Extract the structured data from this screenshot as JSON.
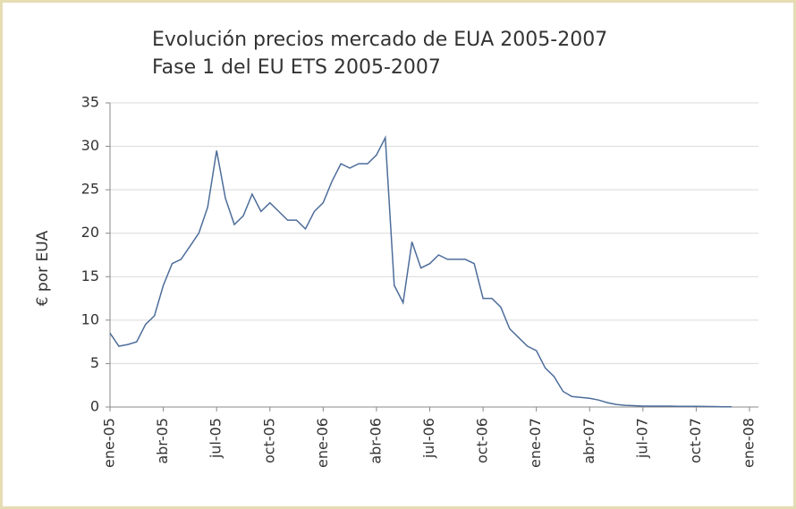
{
  "chart_data": {
    "type": "line",
    "title": "Evolución precios mercado de EUA 2005-2007",
    "subtitle": "Fase 1 del EU ETS 2005-2007",
    "y_label": "€ por EUA",
    "categories": [
      "ene-05",
      null,
      null,
      null,
      null,
      null,
      "abr-05",
      null,
      null,
      null,
      null,
      null,
      "jul-05",
      null,
      null,
      null,
      null,
      null,
      "oct-05",
      null,
      null,
      null,
      null,
      null,
      "ene-06",
      null,
      null,
      null,
      null,
      null,
      "abr-06",
      null,
      null,
      null,
      null,
      null,
      "jul-06",
      null,
      null,
      null,
      null,
      null,
      "oct-06",
      null,
      null,
      null,
      null,
      null,
      "ene-07",
      null,
      null,
      null,
      null,
      null,
      "abr-07",
      null,
      null,
      null,
      null,
      null,
      "jul-07",
      null,
      null,
      null,
      null,
      null,
      "oct-07",
      null,
      null,
      null,
      null,
      null,
      "ene-08"
    ],
    "series": [
      {
        "name": "EUA",
        "color": "#4d6d9a",
        "values": [
          8.5,
          7.0,
          7.2,
          7.5,
          9.5,
          10.5,
          14,
          16.5,
          17,
          18.5,
          20,
          23,
          29.5,
          24,
          21,
          22,
          24.5,
          22.5,
          23.5,
          22.5,
          21.5,
          21.5,
          20.5,
          22.5,
          23.5,
          26,
          28,
          27.5,
          28,
          28,
          29,
          31,
          14,
          12,
          19,
          16,
          16.5,
          17.5,
          17,
          17,
          17,
          16.5,
          12.5,
          12.5,
          11.5,
          9,
          8,
          7,
          6.5,
          4.5,
          3.5,
          1.8,
          1.2,
          1.1,
          1.0,
          0.8,
          0.5,
          0.3,
          0.2,
          0.15,
          0.1,
          0.1,
          0.1,
          0.1,
          0.08,
          0.08,
          0.07,
          0.06,
          0.05,
          0.03,
          0.03,
          null,
          null
        ]
      }
    ],
    "ylim": [
      0,
      35
    ],
    "yticks": [
      0,
      5,
      10,
      15,
      20,
      25,
      30,
      35
    ],
    "grid": true
  }
}
